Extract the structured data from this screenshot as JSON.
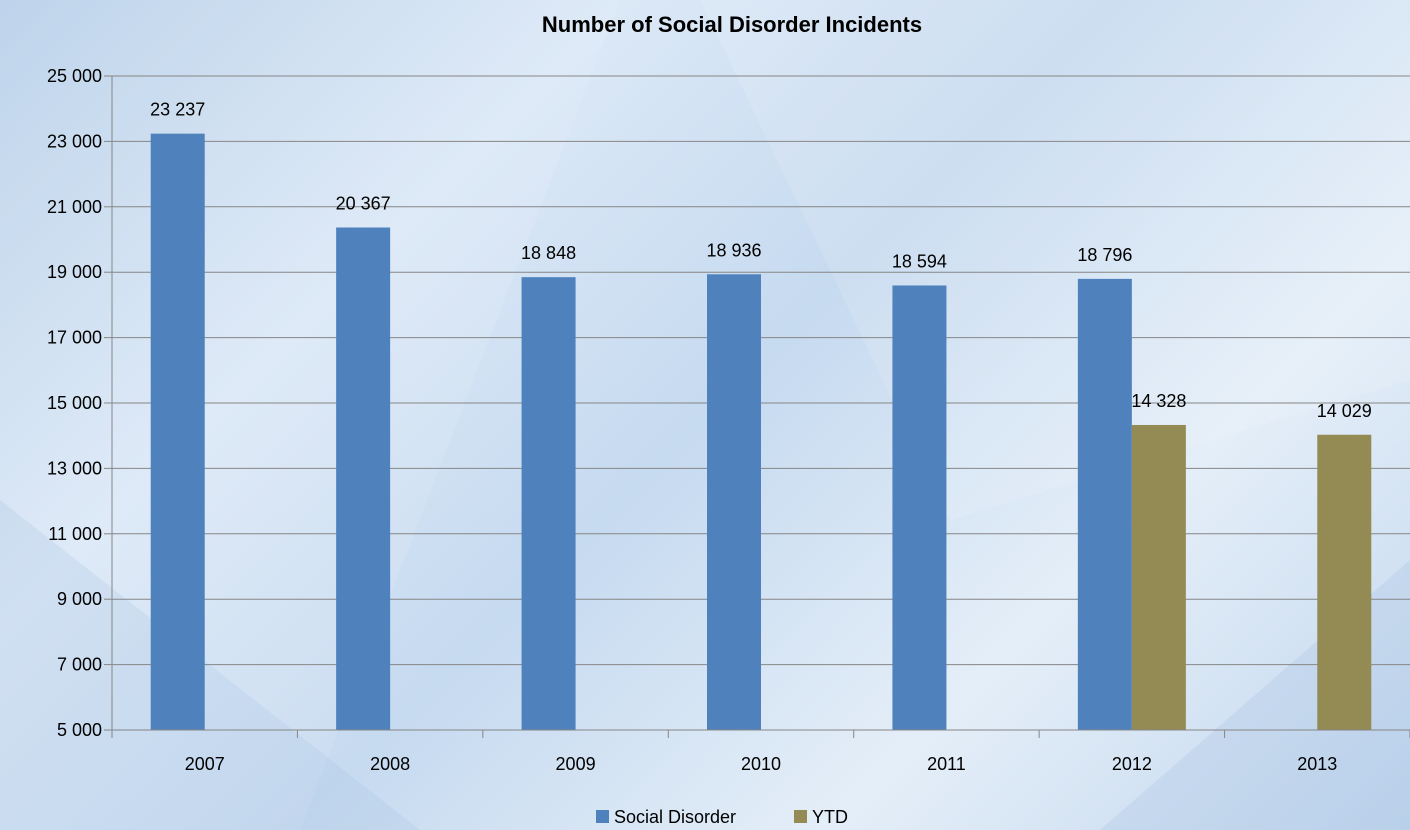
{
  "chart_data": {
    "type": "bar",
    "title": "Number of Social Disorder Incidents",
    "xlabel": "",
    "ylabel": "",
    "categories": [
      "2007",
      "2008",
      "2009",
      "2010",
      "2011",
      "2012",
      "2013"
    ],
    "series": [
      {
        "name": "Social Disorder",
        "color": "#4f81bd",
        "values": [
          23237,
          20367,
          18848,
          18936,
          18594,
          18796,
          null
        ],
        "labels": [
          "23 237",
          "20 367",
          "18 848",
          "18 936",
          "18 594",
          "18 796",
          ""
        ]
      },
      {
        "name": "YTD",
        "color": "#948a54",
        "values": [
          null,
          null,
          null,
          null,
          null,
          14328,
          14029
        ],
        "labels": [
          "",
          "",
          "",
          "",
          "",
          "14 328",
          "14 029"
        ]
      }
    ],
    "ylim": [
      5000,
      25000
    ],
    "yticks": [
      5000,
      7000,
      9000,
      11000,
      13000,
      15000,
      17000,
      19000,
      21000,
      23000,
      25000
    ],
    "ytick_labels": [
      "5 000",
      "7 000",
      "9 000",
      "11 000",
      "13 000",
      "15 000",
      "17 000",
      "19 000",
      "21 000",
      "23 000",
      "25 000"
    ],
    "grid": true,
    "legend_position": "bottom",
    "gridline_color": "#868686",
    "background_color": "#cfe0f1"
  }
}
